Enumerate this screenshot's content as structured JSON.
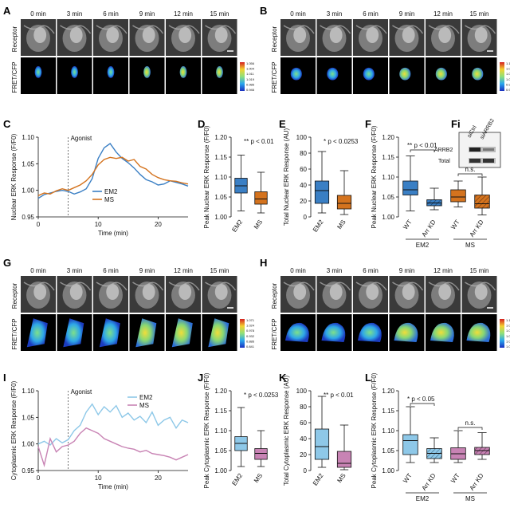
{
  "panels": {
    "A": "A",
    "B": "B",
    "C": "C",
    "D": "D",
    "E": "E",
    "F": "F",
    "Fi": "Fi",
    "G": "G",
    "H": "H",
    "I": "I",
    "J": "J",
    "K": "K",
    "L": "L"
  },
  "timepoints": [
    "0 min",
    "3 min",
    "6 min",
    "9 min",
    "12 min",
    "15 min"
  ],
  "row_labels": {
    "receptor": "Receptor",
    "fret": "FRET/CFP"
  },
  "colorbar_A": [
    "1.056",
    "1.004",
    "1.011",
    "1.019",
    "0.986",
    "0.946"
  ],
  "colorbar_B": [
    "1.157",
    "1.000",
    "1.073",
    "1.020",
    "0.968",
    "0.968"
  ],
  "colorbar_G": [
    "1.071",
    "1.024",
    "0.978",
    "0.932",
    "0.886",
    "0.841"
  ],
  "colorbar_H": [
    "1.170",
    "1.097",
    "1.064",
    "1.051",
    "1.018",
    "1.018"
  ],
  "western_blot": {
    "lanes": [
      "siCtrl",
      "siARRB2"
    ],
    "rows": [
      "ARRB2",
      "Total"
    ]
  },
  "colors": {
    "EM2": "#3a7fc4",
    "MS": "#d4731e",
    "EM2_light": "#8ec8e8",
    "MS_light": "#c883b4"
  },
  "chart_data": [
    {
      "id": "C",
      "type": "line",
      "xlabel": "Time (min)",
      "ylabel": "Nuclear ERK Response (F/F0)",
      "xlim": [
        0,
        25
      ],
      "ylim": [
        0.95,
        1.1
      ],
      "xticks": [
        "0",
        "10",
        "20"
      ],
      "yticks": [
        "0.95",
        "1.00",
        "1.05",
        "1.10"
      ],
      "annotation": "Agonist",
      "agonist_x": 5,
      "series": [
        {
          "name": "EM2",
          "x": [
            0,
            1,
            2,
            3,
            4,
            5,
            6,
            7,
            8,
            9,
            10,
            11,
            12,
            13,
            14,
            15,
            16,
            17,
            18,
            19,
            20,
            21,
            22,
            23,
            24,
            25
          ],
          "values": [
            0.985,
            0.992,
            0.995,
            0.998,
            1.0,
            0.998,
            0.993,
            0.997,
            1.003,
            1.022,
            1.06,
            1.08,
            1.088,
            1.072,
            1.06,
            1.052,
            1.042,
            1.03,
            1.02,
            1.016,
            1.01,
            1.012,
            1.018,
            1.015,
            1.012,
            1.008
          ]
        },
        {
          "name": "MS",
          "x": [
            0,
            1,
            2,
            3,
            4,
            5,
            6,
            7,
            8,
            9,
            10,
            11,
            12,
            13,
            14,
            15,
            16,
            17,
            18,
            19,
            20,
            21,
            22,
            23,
            24,
            25
          ],
          "values": [
            0.99,
            0.995,
            0.993,
            0.999,
            1.003,
            1.0,
            1.005,
            1.01,
            1.018,
            1.03,
            1.048,
            1.058,
            1.062,
            1.06,
            1.062,
            1.055,
            1.058,
            1.045,
            1.04,
            1.03,
            1.024,
            1.02,
            1.018,
            1.017,
            1.014,
            1.012
          ]
        }
      ]
    },
    {
      "id": "D",
      "type": "box",
      "ylabel": "Peak Nuclear ERK Response (F/F0)",
      "ylim": [
        1.0,
        1.2
      ],
      "yticks": [
        "1.00",
        "1.05",
        "1.10",
        "1.15",
        "1.20"
      ],
      "annotation": "** p < 0.01",
      "categories": [
        "EM2",
        "MS"
      ],
      "boxes": [
        {
          "name": "EM2",
          "min": 1.015,
          "q1": 1.06,
          "median": 1.078,
          "q3": 1.097,
          "max": 1.155
        },
        {
          "name": "MS",
          "min": 1.01,
          "q1": 1.032,
          "median": 1.045,
          "q3": 1.063,
          "max": 1.112
        }
      ]
    },
    {
      "id": "E",
      "type": "box",
      "ylabel": "Total Nuclear ERK Response (AU)",
      "ylim": [
        0,
        100
      ],
      "yticks": [
        "0",
        "20",
        "40",
        "60",
        "80",
        "100"
      ],
      "annotation": "* p < 0.0253",
      "categories": [
        "EM2",
        "MS"
      ],
      "boxes": [
        {
          "name": "EM2",
          "min": 5,
          "q1": 17,
          "median": 33,
          "q3": 45,
          "max": 82
        },
        {
          "name": "MS",
          "min": 3,
          "q1": 10,
          "median": 17,
          "q3": 27,
          "max": 58
        }
      ]
    },
    {
      "id": "F",
      "type": "box",
      "ylabel": "Peak Nuclear ERK Response (F/F0)",
      "ylim": [
        1.0,
        1.2
      ],
      "yticks": [
        "1.00",
        "1.05",
        "1.10",
        "1.15",
        "1.20"
      ],
      "annotations": [
        "** p < 0.01",
        "n.s."
      ],
      "categories": [
        "WT",
        "Arr KD",
        "WT",
        "Arr KD"
      ],
      "groups": [
        "EM2",
        "MS"
      ],
      "boxes": [
        {
          "name": "EM2 WT",
          "min": 1.015,
          "q1": 1.055,
          "median": 1.068,
          "q3": 1.09,
          "max": 1.153
        },
        {
          "name": "EM2 Arr KD",
          "min": 1.018,
          "q1": 1.028,
          "median": 1.035,
          "q3": 1.043,
          "max": 1.072
        },
        {
          "name": "MS WT",
          "min": 1.025,
          "q1": 1.038,
          "median": 1.05,
          "q3": 1.068,
          "max": 1.09
        },
        {
          "name": "MS Arr KD",
          "min": 1.005,
          "q1": 1.022,
          "median": 1.033,
          "q3": 1.055,
          "max": 1.1
        }
      ]
    },
    {
      "id": "I",
      "type": "line",
      "xlabel": "Time (min)",
      "ylabel": "Cytoplasmic ERK Response (F/F0)",
      "xlim": [
        0,
        25
      ],
      "ylim": [
        0.95,
        1.1
      ],
      "xticks": [
        "0",
        "10",
        "20"
      ],
      "yticks": [
        "0.95",
        "1.00",
        "1.05",
        "1.10"
      ],
      "annotation": "Agonist",
      "agonist_x": 5,
      "series": [
        {
          "name": "EM2",
          "x": [
            0,
            1,
            2,
            3,
            4,
            5,
            6,
            7,
            8,
            9,
            10,
            11,
            12,
            13,
            14,
            15,
            16,
            17,
            18,
            19,
            20,
            21,
            22,
            23,
            24,
            25
          ],
          "values": [
            1.0,
            1.005,
            0.998,
            1.01,
            1.002,
            1.008,
            1.025,
            1.035,
            1.06,
            1.075,
            1.055,
            1.07,
            1.06,
            1.072,
            1.05,
            1.058,
            1.045,
            1.052,
            1.04,
            1.06,
            1.035,
            1.045,
            1.05,
            1.03,
            1.045,
            1.04
          ]
        },
        {
          "name": "MS",
          "x": [
            0,
            1,
            2,
            3,
            4,
            5,
            6,
            7,
            8,
            9,
            10,
            11,
            12,
            13,
            14,
            15,
            16,
            17,
            18,
            19,
            20,
            21,
            22,
            23,
            24,
            25
          ],
          "values": [
            0.995,
            0.96,
            1.01,
            0.985,
            0.995,
            0.998,
            1.005,
            1.02,
            1.03,
            1.025,
            1.02,
            1.01,
            1.005,
            1.0,
            0.995,
            0.992,
            0.99,
            0.985,
            0.988,
            0.982,
            0.98,
            0.978,
            0.975,
            0.97,
            0.975,
            0.98
          ]
        }
      ]
    },
    {
      "id": "J",
      "type": "box",
      "ylabel": "Peak Cytoplasmic ERK Response (F/F0)",
      "ylim": [
        1.0,
        1.2
      ],
      "yticks": [
        "1.00",
        "1.05",
        "1.10",
        "1.15",
        "1.20"
      ],
      "annotation": "* p < 0.0253",
      "categories": [
        "EM2",
        "MS"
      ],
      "boxes": [
        {
          "name": "EM2",
          "min": 1.01,
          "q1": 1.05,
          "median": 1.068,
          "q3": 1.085,
          "max": 1.158
        },
        {
          "name": "MS",
          "min": 1.01,
          "q1": 1.028,
          "median": 1.043,
          "q3": 1.055,
          "max": 1.1
        }
      ]
    },
    {
      "id": "K",
      "type": "box",
      "ylabel": "Total Cytoplasmic ERK Response (AU)",
      "ylim": [
        0,
        100
      ],
      "yticks": [
        "0",
        "20",
        "40",
        "60",
        "80",
        "100"
      ],
      "annotation": "** p < 0.01",
      "categories": [
        "EM2",
        "MS"
      ],
      "boxes": [
        {
          "name": "EM2",
          "min": 4,
          "q1": 14,
          "median": 30,
          "q3": 52,
          "max": 93
        },
        {
          "name": "MS",
          "min": 1,
          "q1": 4,
          "median": 9,
          "q3": 24,
          "max": 57
        }
      ]
    },
    {
      "id": "L",
      "type": "box",
      "ylabel": "Peak Cytoplasmic ERK Response (F/F0)",
      "ylim": [
        1.0,
        1.2
      ],
      "yticks": [
        "1.00",
        "1.05",
        "1.10",
        "1.15",
        "1.20"
      ],
      "annotations": [
        "* p < 0.05",
        "n.s."
      ],
      "categories": [
        "WT",
        "Arr KD",
        "WT",
        "Arr KD"
      ],
      "groups": [
        "EM2",
        "MS"
      ],
      "boxes": [
        {
          "name": "EM2 WT",
          "min": 1.02,
          "q1": 1.04,
          "median": 1.075,
          "q3": 1.09,
          "max": 1.16
        },
        {
          "name": "EM2 Arr KD",
          "min": 1.02,
          "q1": 1.03,
          "median": 1.043,
          "q3": 1.055,
          "max": 1.082
        },
        {
          "name": "MS WT",
          "min": 1.02,
          "q1": 1.028,
          "median": 1.042,
          "q3": 1.057,
          "max": 1.1
        },
        {
          "name": "MS Arr KD",
          "min": 1.028,
          "q1": 1.04,
          "median": 1.05,
          "q3": 1.058,
          "max": 1.095
        }
      ]
    }
  ]
}
